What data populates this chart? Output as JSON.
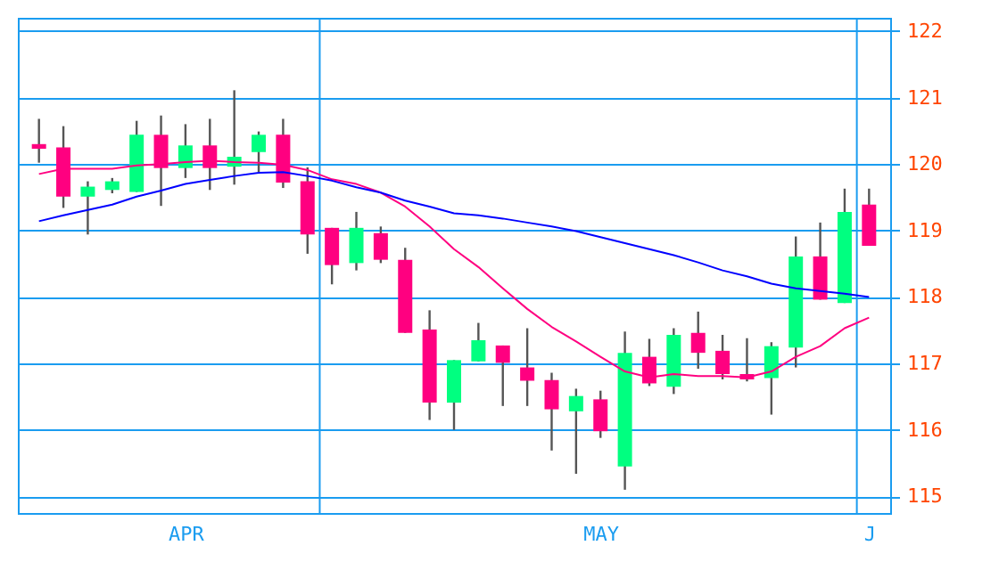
{
  "chart_data": {
    "type": "candlestick",
    "categories": [
      null,
      null,
      null,
      null,
      null,
      null,
      "APR",
      null,
      null,
      null,
      null,
      null,
      null,
      null,
      null,
      null,
      null,
      null,
      null,
      null,
      null,
      null,
      null,
      "MAY",
      null,
      null,
      null,
      null,
      null,
      null,
      null,
      null,
      null,
      null,
      "J"
    ],
    "ohlc": [
      [
        120.3,
        120.68,
        120.02,
        120.23
      ],
      [
        120.25,
        120.57,
        119.34,
        119.51
      ],
      [
        119.51,
        119.74,
        118.94,
        119.66
      ],
      [
        119.61,
        119.79,
        119.56,
        119.74
      ],
      [
        119.58,
        120.65,
        119.58,
        120.44
      ],
      [
        120.44,
        120.73,
        119.37,
        119.94
      ],
      [
        119.94,
        120.6,
        119.79,
        120.28
      ],
      [
        120.28,
        120.68,
        119.61,
        119.94
      ],
      [
        119.96,
        121.11,
        119.69,
        120.11
      ],
      [
        120.18,
        120.49,
        119.88,
        120.44
      ],
      [
        120.44,
        120.68,
        119.64,
        119.72
      ],
      [
        119.74,
        119.95,
        118.65,
        118.94
      ],
      [
        119.04,
        119.04,
        118.19,
        118.48
      ],
      [
        118.51,
        119.28,
        118.4,
        119.04
      ],
      [
        118.96,
        119.06,
        118.51,
        118.56
      ],
      [
        118.56,
        118.74,
        117.46,
        117.46
      ],
      [
        117.51,
        117.8,
        116.15,
        116.41
      ],
      [
        116.41,
        117.05,
        116.0,
        117.05
      ],
      [
        117.03,
        117.61,
        117.03,
        117.35
      ],
      [
        117.27,
        117.27,
        116.36,
        117.01
      ],
      [
        116.94,
        117.53,
        116.36,
        116.74
      ],
      [
        116.75,
        116.86,
        115.69,
        116.31
      ],
      [
        116.28,
        116.62,
        115.34,
        116.51
      ],
      [
        116.46,
        116.59,
        115.88,
        115.98
      ],
      [
        115.45,
        117.48,
        115.1,
        117.16
      ],
      [
        117.1,
        117.37,
        116.66,
        116.7
      ],
      [
        116.65,
        117.53,
        116.54,
        117.43
      ],
      [
        117.46,
        117.78,
        116.92,
        117.16
      ],
      [
        117.19,
        117.43,
        116.76,
        116.84
      ],
      [
        116.84,
        117.38,
        116.73,
        116.76
      ],
      [
        116.78,
        117.32,
        116.23,
        117.26
      ],
      [
        117.24,
        118.91,
        116.94,
        118.61
      ],
      [
        118.61,
        119.12,
        117.96,
        117.96
      ],
      [
        117.91,
        119.63,
        117.91,
        119.28
      ],
      [
        119.39,
        119.63,
        118.77,
        118.77
      ]
    ],
    "colors": [
      "#ff0080",
      "#ff0080",
      "#00ff80",
      "#00ff80",
      "#00ff80",
      "#ff0080",
      "#00ff80",
      "#ff0080",
      "#00ff80",
      "#00ff80",
      "#ff0080",
      "#ff0080",
      "#ff0080",
      "#00ff80",
      "#ff0080",
      "#ff0080",
      "#ff0080",
      "#00ff80",
      "#00ff80",
      "#ff0080",
      "#ff0080",
      "#ff0080",
      "#00ff80",
      "#ff0080",
      "#00ff80",
      "#ff0080",
      "#00ff80",
      "#ff0080",
      "#ff0080",
      "#ff0080",
      "#00ff80",
      "#00ff80",
      "#ff0080",
      "#00ff80",
      "#ff0080"
    ],
    "series": [
      {
        "type": "line",
        "color": "#ff0080",
        "values": [
          119.85,
          119.93,
          119.93,
          119.93,
          119.98,
          120.0,
          120.03,
          120.05,
          120.03,
          120.02,
          119.99,
          119.91,
          119.77,
          119.7,
          119.57,
          119.36,
          119.06,
          118.72,
          118.45,
          118.13,
          117.82,
          117.55,
          117.33,
          117.1,
          116.88,
          116.79,
          116.84,
          116.81,
          116.81,
          116.79,
          116.88,
          117.1,
          117.26,
          117.53,
          117.69
        ]
      },
      {
        "type": "line",
        "color": "#0000ff",
        "values": [
          119.14,
          119.23,
          119.31,
          119.39,
          119.51,
          119.6,
          119.7,
          119.76,
          119.82,
          119.87,
          119.88,
          119.82,
          119.75,
          119.65,
          119.57,
          119.45,
          119.36,
          119.26,
          119.23,
          119.18,
          119.12,
          119.06,
          118.99,
          118.9,
          118.81,
          118.72,
          118.63,
          118.52,
          118.4,
          118.31,
          118.2,
          118.13,
          118.09,
          118.05,
          118.0
        ]
      }
    ],
    "ylim": [
      114.75,
      122.2
    ],
    "yticks": [
      115,
      116,
      117,
      118,
      119,
      120,
      121,
      122
    ],
    "grid": true
  }
}
